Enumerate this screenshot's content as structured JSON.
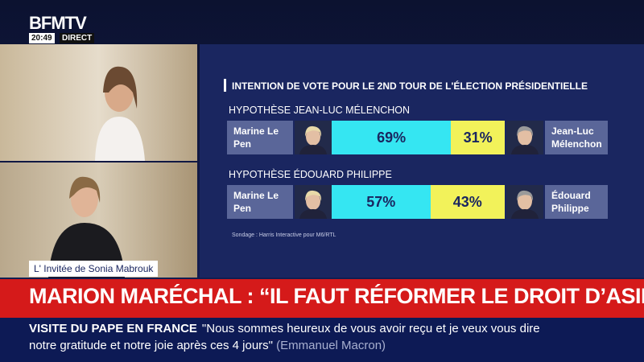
{
  "channel": {
    "logo": "BFMTV",
    "time": "20:49",
    "live": "DIRECT"
  },
  "poll": {
    "title": "INTENTION DE VOTE POUR LE 2ND TOUR DE L'ÉLECTION PRÉSIDENTIELLE",
    "scenarios": [
      {
        "label": "HYPOTHÈSE JEAN-LUC MÉLENCHON",
        "left": "Marine Le Pen",
        "right": "Jean-Luc Mélenchon",
        "values": [
          69,
          31
        ],
        "value_labels": [
          "69%",
          "31%"
        ]
      },
      {
        "label": "HYPOTHÈSE ÉDOUARD PHILIPPE",
        "left": "Marine Le Pen",
        "right": "Édouard Philippe",
        "values": [
          57,
          43
        ],
        "value_labels": [
          "57%",
          "43%"
        ]
      }
    ],
    "colors": [
      "#35e6f2",
      "#f2f25a"
    ],
    "source": "Sondage : Harris Interactive pour M6/RTL"
  },
  "lower_third": {
    "show": "L' Invitée de Sonia Mabrouk",
    "headline": "MARION MARÉCHAL : “IL FAUT RÉFORMER LE DROIT D’ASILE”",
    "ticker_topic": "VISITE DU PAPE EN FRANCE",
    "ticker_text": "\"Nous sommes heureux de vous avoir reçu et je veux vous dire notre gratitude et notre joie après ces 4 jours\"",
    "ticker_source": "(Emmanuel Macron)"
  }
}
